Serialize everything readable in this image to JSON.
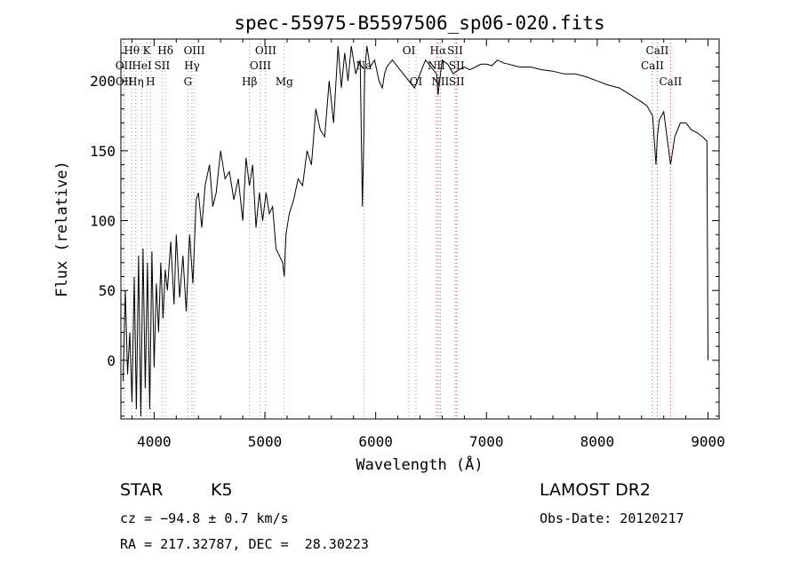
{
  "chart_data": {
    "type": "line",
    "title": "spec-55975-B5597506_sp06-020.fits",
    "xlabel": "Wavelength (Å)",
    "ylabel": "Flux (relative)",
    "xlim": [
      3700,
      9100
    ],
    "ylim": [
      -42,
      230
    ],
    "x_ticks": [
      4000,
      5000,
      6000,
      7000,
      8000,
      9000
    ],
    "x_tick_labels": [
      "4000",
      "5000",
      "6000",
      "7000",
      "8000",
      "9000"
    ],
    "y_ticks": [
      0,
      50,
      100,
      150,
      200
    ],
    "y_tick_labels": [
      "0",
      "50",
      "100",
      "150",
      "200"
    ],
    "grid": false,
    "series": [
      {
        "x": [
          3720,
          3740,
          3760,
          3780,
          3800,
          3820,
          3840,
          3860,
          3880,
          3900,
          3920,
          3940,
          3960,
          3980,
          4000,
          4020,
          4040,
          4060,
          4080,
          4100,
          4120,
          4150,
          4180,
          4200,
          4230,
          4260,
          4290,
          4320,
          4350,
          4380,
          4400,
          4430,
          4460,
          4500,
          4530,
          4560,
          4600,
          4640,
          4680,
          4720,
          4760,
          4800,
          4830,
          4860,
          4890,
          4920,
          4950,
          4980,
          5010,
          5040,
          5070,
          5100,
          5130,
          5160,
          5175,
          5190,
          5220,
          5260,
          5300,
          5340,
          5380,
          5420,
          5460,
          5500,
          5540,
          5580,
          5620,
          5660,
          5690,
          5720,
          5750,
          5780,
          5820,
          5860,
          5880,
          5893,
          5900,
          5920,
          5950,
          5990,
          6030,
          6060,
          6080,
          6100,
          6150,
          6200,
          6250,
          6300,
          6350,
          6400,
          6450,
          6500,
          6550,
          6563,
          6600,
          6650,
          6700,
          6750,
          6800,
          6850,
          6900,
          6950,
          7000,
          7050,
          7100,
          7150,
          7200,
          7300,
          7400,
          7500,
          7600,
          7700,
          7800,
          7900,
          8000,
          8100,
          8200,
          8300,
          8400,
          8450,
          8500,
          8530,
          8542,
          8560,
          8600,
          8662,
          8700,
          8750,
          8800,
          8850,
          8900,
          8950,
          8990,
          9000
        ],
        "y": [
          -15,
          50,
          -10,
          20,
          -30,
          60,
          -35,
          75,
          -40,
          80,
          -20,
          70,
          -35,
          78,
          -5,
          55,
          20,
          70,
          30,
          65,
          50,
          85,
          40,
          90,
          45,
          75,
          35,
          90,
          55,
          115,
          120,
          95,
          125,
          140,
          110,
          120,
          150,
          130,
          135,
          115,
          130,
          100,
          145,
          125,
          140,
          95,
          120,
          100,
          120,
          105,
          110,
          80,
          75,
          70,
          60,
          90,
          105,
          115,
          130,
          125,
          150,
          140,
          180,
          165,
          160,
          200,
          170,
          225,
          195,
          220,
          200,
          225,
          205,
          215,
          110,
          160,
          205,
          225,
          210,
          215,
          200,
          195,
          205,
          210,
          215,
          210,
          205,
          200,
          195,
          205,
          215,
          210,
          205,
          190,
          215,
          212,
          205,
          208,
          210,
          208,
          210,
          212,
          212,
          211,
          215,
          213,
          212,
          210,
          210,
          208,
          207,
          205,
          205,
          203,
          200,
          197,
          195,
          190,
          185,
          182,
          175,
          140,
          160,
          172,
          178,
          140,
          160,
          170,
          170,
          165,
          163,
          160,
          157,
          0
        ],
        "values_note": ""
      }
    ],
    "line_markers": [
      {
        "label": "Hθ",
        "x": 3798,
        "row": 1,
        "color": "#999999"
      },
      {
        "label": "K",
        "x": 3934,
        "row": 1,
        "color": "#999999"
      },
      {
        "label": "Hδ",
        "x": 4102,
        "row": 1,
        "color": "#999999"
      },
      {
        "label": "OIII",
        "x": 4363,
        "row": 1,
        "color": "#999999"
      },
      {
        "label": "OIII",
        "x": 5007,
        "row": 1,
        "color": "#999999"
      },
      {
        "label": "OI",
        "x": 6300,
        "row": 1,
        "color": "#999999"
      },
      {
        "label": "Hα",
        "x": 6563,
        "row": 1,
        "color": "#cc5555"
      },
      {
        "label": "SII",
        "x": 6717,
        "row": 1,
        "color": "#cc5555"
      },
      {
        "label": "CaII",
        "x": 8542,
        "row": 1,
        "color": "#cc5555"
      },
      {
        "label": "OII",
        "x": 3727,
        "row": 2,
        "color": "#999999"
      },
      {
        "label": "HeI",
        "x": 3889,
        "row": 2,
        "color": "#999999"
      },
      {
        "label": "SII",
        "x": 4072,
        "row": 2,
        "color": "#999999"
      },
      {
        "label": "Hγ",
        "x": 4341,
        "row": 2,
        "color": "#999999"
      },
      {
        "label": "OIII",
        "x": 4959,
        "row": 2,
        "color": "#999999"
      },
      {
        "label": "Na",
        "x": 5893,
        "row": 2,
        "color": "#999999"
      },
      {
        "label": "NII",
        "x": 6548,
        "row": 2,
        "color": "#cc5555"
      },
      {
        "label": "SII",
        "x": 6731,
        "row": 2,
        "color": "#cc5555"
      },
      {
        "label": "CaII",
        "x": 8498,
        "row": 2,
        "color": "#cc5555"
      },
      {
        "label": "OII",
        "x": 3729,
        "row": 3,
        "color": "#999999"
      },
      {
        "label": "Hη",
        "x": 3835,
        "row": 3,
        "color": "#999999"
      },
      {
        "label": "H",
        "x": 3968,
        "row": 3,
        "color": "#999999"
      },
      {
        "label": "G",
        "x": 4305,
        "row": 3,
        "color": "#999999"
      },
      {
        "label": "Hβ",
        "x": 4861,
        "row": 3,
        "color": "#999999"
      },
      {
        "label": "Mg",
        "x": 5175,
        "row": 3,
        "color": "#999999"
      },
      {
        "label": "OI",
        "x": 6364,
        "row": 3,
        "color": "#999999"
      },
      {
        "label": "NII",
        "x": 6583,
        "row": 3,
        "color": "#cc5555"
      },
      {
        "label": "SII",
        "x": 6731,
        "row": 3,
        "color": "#cc5555"
      },
      {
        "label": "CaII",
        "x": 8662,
        "row": 3,
        "color": "#cc5555"
      }
    ]
  },
  "info": {
    "class": "STAR",
    "subclass": "K5",
    "survey": "LAMOST DR2",
    "redshift": "cz = −94.8 ± 0.7 km/s",
    "obs_date": "Obs-Date: 20120217",
    "coords": "RA = 217.32787, DEC =  28.30223"
  }
}
